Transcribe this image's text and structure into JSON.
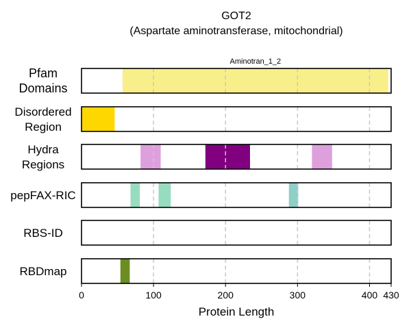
{
  "title": "GOT2",
  "subtitle": "(Aspartate aminotransferase, mitochondrial)",
  "chart_data": {
    "type": "bar",
    "subtype": "protein-domain-tracks",
    "xlabel": "Protein Length",
    "xlim": [
      0,
      430
    ],
    "xticks": [
      0,
      100,
      200,
      300,
      400,
      430
    ],
    "xtick_labels": [
      "0",
      "100",
      "200",
      "300",
      "400",
      "430"
    ],
    "grid": "vertical dashed at 100, 200, 300, 400",
    "tracks": [
      {
        "name_lines": [
          "Pfam",
          "Domains"
        ],
        "segments": [
          {
            "start": 57,
            "end": 426,
            "color": "#f9ef8a",
            "label": "Aminotran_1_2"
          }
        ]
      },
      {
        "name_lines": [
          "Disordered",
          "Region"
        ],
        "segments": [
          {
            "start": 0,
            "end": 46,
            "color": "#ffd700"
          }
        ]
      },
      {
        "name_lines": [
          "Hydra",
          "Regions"
        ],
        "segments": [
          {
            "start": 82,
            "end": 110,
            "color": "#dda0dd"
          },
          {
            "start": 172,
            "end": 234,
            "color": "#800080"
          },
          {
            "start": 320,
            "end": 348,
            "color": "#dda0dd"
          }
        ]
      },
      {
        "name_lines": [
          "pepFAX-RIC"
        ],
        "segments": [
          {
            "start": 68,
            "end": 81,
            "color": "#98dcc0"
          },
          {
            "start": 107,
            "end": 124,
            "color": "#98dcc0"
          },
          {
            "start": 288,
            "end": 301,
            "color": "#8ecfc6"
          }
        ]
      },
      {
        "name_lines": [
          "RBS-ID"
        ],
        "segments": []
      },
      {
        "name_lines": [
          "RBDmap"
        ],
        "segments": [
          {
            "start": 54,
            "end": 67,
            "color": "#6b8e23"
          }
        ]
      }
    ]
  }
}
